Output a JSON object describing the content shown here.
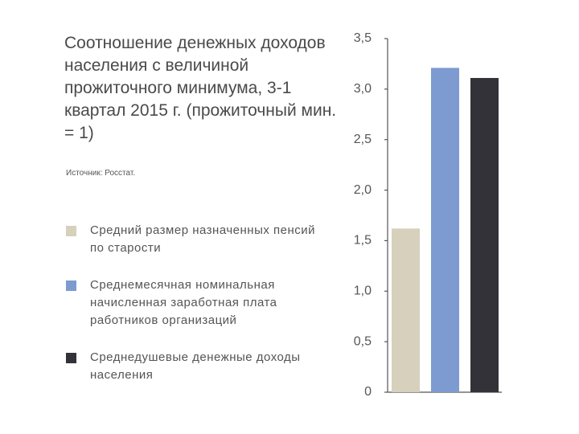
{
  "chart_data": {
    "type": "bar",
    "title": "Соотношение денежных доходов населения с величиной прожиточного минимума, 3-1 квартал 2015 г. (прожиточный мин. = 1)",
    "source": "Источник: Росстат.",
    "series": [
      {
        "name": "Средний размер назначенных пенсий по старости",
        "color": "#d6d0bc",
        "values": [
          1.62
        ]
      },
      {
        "name": "Среднемесячная номинальная начисленная заработная плата работников организаций",
        "color": "#7d9bd0",
        "values": [
          3.21
        ]
      },
      {
        "name": "Среднедушевые денежные доходы населения",
        "color": "#333238",
        "values": [
          3.11
        ]
      }
    ],
    "ylim": [
      0,
      3.5
    ],
    "yticks": [
      0,
      {
        "value": 0.5,
        "label": "0,5"
      },
      {
        "value": 1,
        "label": "1,0"
      },
      {
        "value": 1.5,
        "label": "1,5"
      },
      {
        "value": 2,
        "label": "2,0"
      },
      {
        "value": 2.5,
        "label": "2,5"
      },
      {
        "value": 3,
        "label": "3,0"
      },
      {
        "value": 3.5,
        "label": "3,5"
      }
    ],
    "grid": false
  }
}
